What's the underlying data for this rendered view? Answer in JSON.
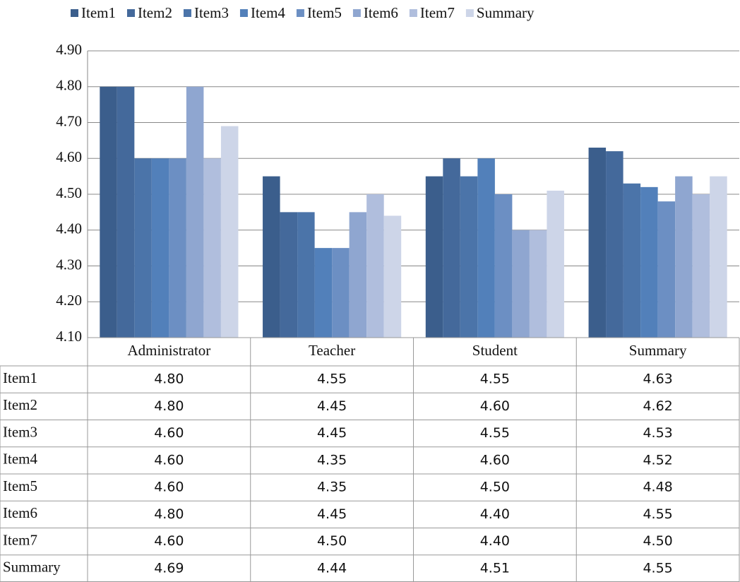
{
  "chart_data": {
    "type": "bar",
    "categories": [
      "Administrator",
      "Teacher",
      "Student",
      "Summary"
    ],
    "series": [
      {
        "name": "Item1",
        "color": "#3b5e8c",
        "values": [
          4.8,
          4.55,
          4.55,
          4.63
        ],
        "value_labels": [
          "4.80",
          "4.55",
          "4.55",
          "4.63"
        ]
      },
      {
        "name": "Item2",
        "color": "#44699b",
        "values": [
          4.8,
          4.45,
          4.6,
          4.62
        ],
        "value_labels": [
          "4.80",
          "4.45",
          "4.60",
          "4.62"
        ]
      },
      {
        "name": "Item3",
        "color": "#4b74a9",
        "values": [
          4.6,
          4.45,
          4.55,
          4.53
        ],
        "value_labels": [
          "4.60",
          "4.45",
          "4.55",
          "4.53"
        ]
      },
      {
        "name": "Item4",
        "color": "#5280ba",
        "values": [
          4.6,
          4.35,
          4.6,
          4.52
        ],
        "value_labels": [
          "4.60",
          "4.35",
          "4.60",
          "4.52"
        ]
      },
      {
        "name": "Item5",
        "color": "#6c8fc3",
        "values": [
          4.6,
          4.35,
          4.5,
          4.48
        ],
        "value_labels": [
          "4.60",
          "4.35",
          "4.50",
          "4.48"
        ]
      },
      {
        "name": "Item6",
        "color": "#8fa6d0",
        "values": [
          4.8,
          4.45,
          4.4,
          4.55
        ],
        "value_labels": [
          "4.80",
          "4.45",
          "4.40",
          "4.55"
        ]
      },
      {
        "name": "Item7",
        "color": "#b0bedd",
        "values": [
          4.6,
          4.5,
          4.4,
          4.5
        ],
        "value_labels": [
          "4.60",
          "4.50",
          "4.40",
          "4.50"
        ]
      },
      {
        "name": "Summary",
        "color": "#cdd5e8",
        "values": [
          4.69,
          4.44,
          4.51,
          4.55
        ],
        "value_labels": [
          "4.69",
          "4.44",
          "4.51",
          "4.55"
        ]
      }
    ],
    "ylim": [
      4.1,
      4.9
    ],
    "yticks": [
      {
        "value": 4.1,
        "label": "4.10"
      },
      {
        "value": 4.2,
        "label": "4.20"
      },
      {
        "value": 4.3,
        "label": "4.30"
      },
      {
        "value": 4.4,
        "label": "4.40"
      },
      {
        "value": 4.5,
        "label": "4.50"
      },
      {
        "value": 4.6,
        "label": "4.60"
      },
      {
        "value": 4.7,
        "label": "4.70"
      },
      {
        "value": 4.8,
        "label": "4.80"
      },
      {
        "value": 4.9,
        "label": "4.90"
      }
    ],
    "grid": true,
    "legend": "top"
  }
}
